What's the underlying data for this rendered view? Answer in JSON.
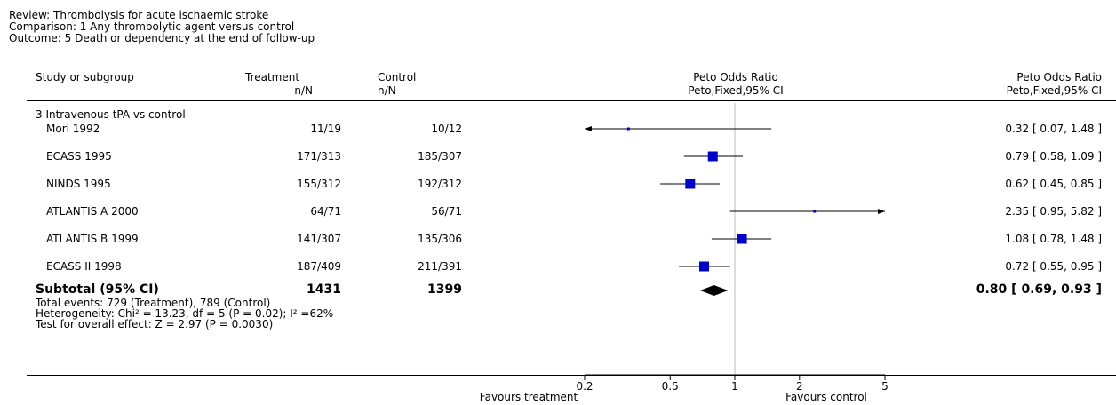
{
  "header": {
    "review": "Review:  Thrombolysis for acute ischaemic stroke",
    "comparison": "Comparison:  1 Any thrombolytic agent versus control",
    "outcome": "Outcome:  5 Death or dependency at the end of follow-up"
  },
  "columns": {
    "study": "Study or subgroup",
    "treatment": "Treatment",
    "treatment_sub": "n/N",
    "control": "Control",
    "control_sub": "n/N",
    "plot_title": "Peto Odds Ratio",
    "plot_sub": "Peto,Fixed,95% CI",
    "ratio_title": "Peto Odds Ratio",
    "ratio_sub": "Peto,Fixed,95% CI"
  },
  "subgroup_title": "3 Intravenous tPA vs control",
  "subtotal": {
    "label": "Subtotal (95% CI)",
    "treatment_total": "1431",
    "control_total": "1399",
    "ci_text": "0.80 [ 0.69, 0.93 ]",
    "total_events": "Total events: 729 (Treatment), 789 (Control)",
    "heterogeneity": "Heterogeneity: Chi² = 13.23, df = 5 (P = 0.02); I² =62%",
    "overall_effect": "Test for overall effect: Z = 2.97 (P = 0.0030)"
  },
  "axis": {
    "favours_left": "Favours treatment",
    "favours_right": "Favours control"
  },
  "colors": {
    "marker": "#0000cc",
    "line": "#000000",
    "ref_line": "#bbbbbb"
  },
  "chart_data": {
    "type": "forest",
    "scale": "log",
    "xlim": [
      0.2,
      5
    ],
    "ticks": [
      {
        "value": 0.2,
        "label": "0.2"
      },
      {
        "value": 0.5,
        "label": "0.5"
      },
      {
        "value": 1,
        "label": "1"
      },
      {
        "value": 2,
        "label": "2"
      },
      {
        "value": 5,
        "label": "5"
      }
    ],
    "studies": [
      {
        "name": "Mori 1992",
        "treatment": "11/19",
        "control": "10/12",
        "or": 0.32,
        "lo": 0.07,
        "hi": 1.48,
        "ci_text": "0.32 [ 0.07, 1.48 ]",
        "marker": "small",
        "arrow_left": true
      },
      {
        "name": "ECASS 1995",
        "treatment": "171/313",
        "control": "185/307",
        "or": 0.79,
        "lo": 0.58,
        "hi": 1.09,
        "ci_text": "0.79 [ 0.58, 1.09 ]",
        "marker": "square"
      },
      {
        "name": "NINDS 1995",
        "treatment": "155/312",
        "control": "192/312",
        "or": 0.62,
        "lo": 0.45,
        "hi": 0.85,
        "ci_text": "0.62 [ 0.45, 0.85 ]",
        "marker": "square"
      },
      {
        "name": "ATLANTIS A 2000",
        "treatment": "64/71",
        "control": "56/71",
        "or": 2.35,
        "lo": 0.95,
        "hi": 5.82,
        "ci_text": "2.35 [ 0.95, 5.82 ]",
        "marker": "small",
        "arrow_right": true
      },
      {
        "name": "ATLANTIS B 1999",
        "treatment": "141/307",
        "control": "135/306",
        "or": 1.08,
        "lo": 0.78,
        "hi": 1.48,
        "ci_text": "1.08 [ 0.78, 1.48 ]",
        "marker": "square"
      },
      {
        "name": "ECASS II 1998",
        "treatment": "187/409",
        "control": "211/391",
        "or": 0.72,
        "lo": 0.55,
        "hi": 0.95,
        "ci_text": "0.72 [ 0.55, 0.95 ]",
        "marker": "square"
      }
    ],
    "pooled": {
      "or": 0.8,
      "lo": 0.69,
      "hi": 0.93
    }
  }
}
